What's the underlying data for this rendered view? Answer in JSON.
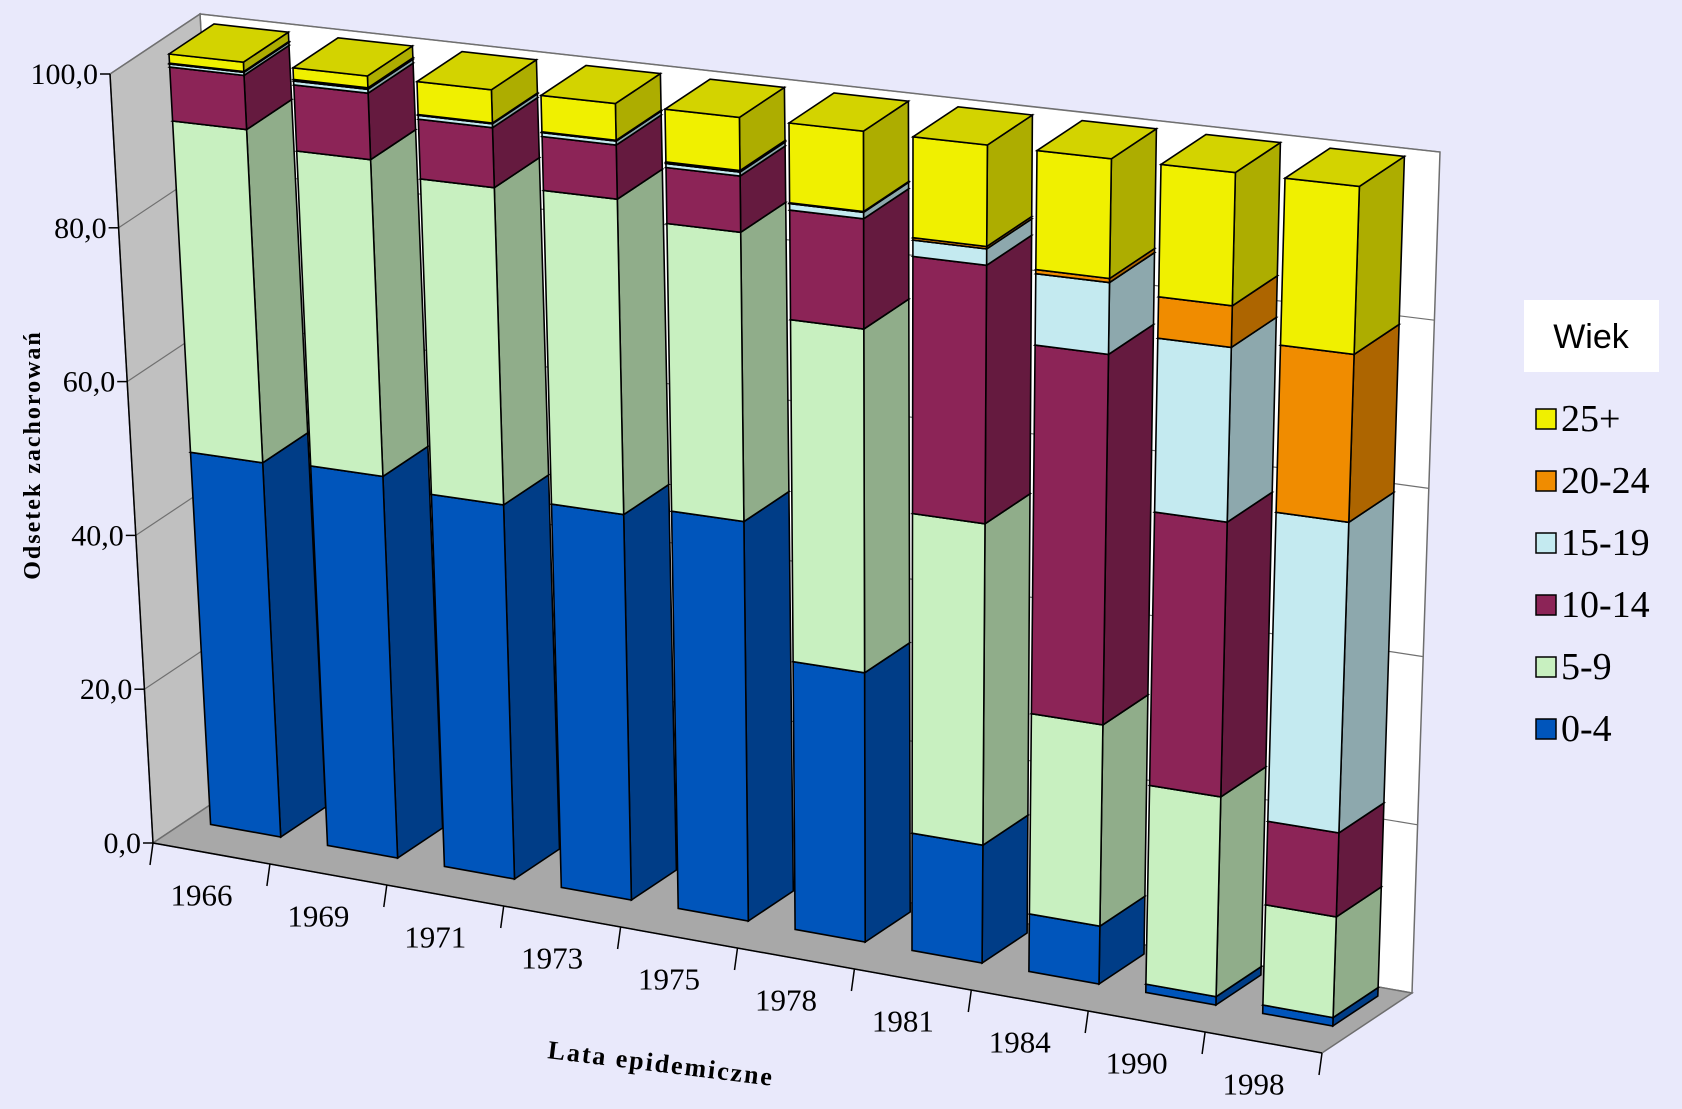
{
  "chart_data": {
    "type": "bar",
    "stacked": true,
    "three_d": true,
    "title": "",
    "xlabel": "Lata epidemiczne",
    "ylabel": "Odsetek zachorowań",
    "ylim": [
      0,
      100
    ],
    "yticks": [
      "0,0",
      "20,0",
      "40,0",
      "60,0",
      "80,0",
      "100,0"
    ],
    "grid": true,
    "legend_title": "Wiek",
    "legend_position": "right",
    "categories": [
      "1966",
      "1969",
      "1971",
      "1973",
      "1975",
      "1978",
      "1981",
      "1984",
      "1990",
      "1998"
    ],
    "series": [
      {
        "name": "0-4",
        "color": "#0055bb",
        "values": [
          48.3,
          48.8,
          47.4,
          48.4,
          49.7,
          33.2,
          14.4,
          7.0,
          1.0,
          1.0
        ]
      },
      {
        "name": "5-9",
        "color": "#c8f0c0",
        "values": [
          43.0,
          40.5,
          40.2,
          39.6,
          36.0,
          42.4,
          39.3,
          24.4,
          24.0,
          12.0
        ]
      },
      {
        "name": "10-14",
        "color": "#8c2457",
        "values": [
          7.0,
          8.5,
          7.6,
          6.8,
          7.0,
          13.6,
          31.6,
          44.9,
          33.0,
          10.0
        ]
      },
      {
        "name": "15-19",
        "color": "#c4eaf0",
        "values": [
          0.4,
          0.5,
          0.5,
          0.5,
          0.5,
          0.8,
          2.0,
          8.7,
          21.0,
          37.0
        ]
      },
      {
        "name": "20-24",
        "color": "#f08c00",
        "values": [
          0.1,
          0.2,
          0.1,
          0.1,
          0.2,
          0.1,
          0.3,
          0.5,
          5.0,
          20.0
        ]
      },
      {
        "name": "25+",
        "color": "#f0f000",
        "values": [
          1.2,
          1.5,
          4.2,
          4.6,
          6.6,
          9.9,
          12.4,
          14.5,
          16.0,
          20.0
        ]
      }
    ]
  }
}
